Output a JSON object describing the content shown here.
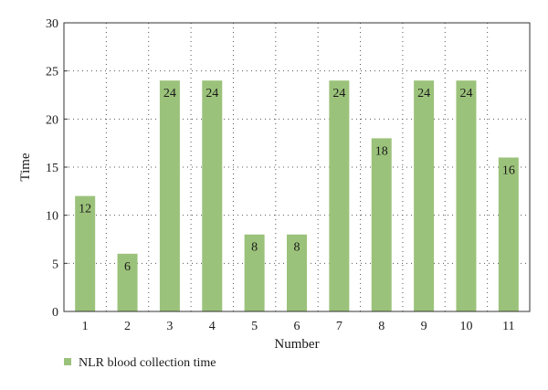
{
  "chart_data": {
    "type": "bar",
    "categories": [
      "1",
      "2",
      "3",
      "4",
      "5",
      "6",
      "7",
      "8",
      "9",
      "10",
      "11"
    ],
    "series": [
      {
        "name": "NLR blood collection time",
        "values": [
          12,
          6,
          24,
          24,
          8,
          8,
          24,
          18,
          24,
          24,
          16
        ],
        "color": "#9bc27a"
      }
    ],
    "xlabel": "Number",
    "ylabel": "Time",
    "ylim": [
      0,
      30
    ],
    "yticks": [
      0,
      5,
      10,
      15,
      20,
      25,
      30
    ],
    "grid": true,
    "data_labels": true,
    "legend_position": "bottom-left"
  }
}
